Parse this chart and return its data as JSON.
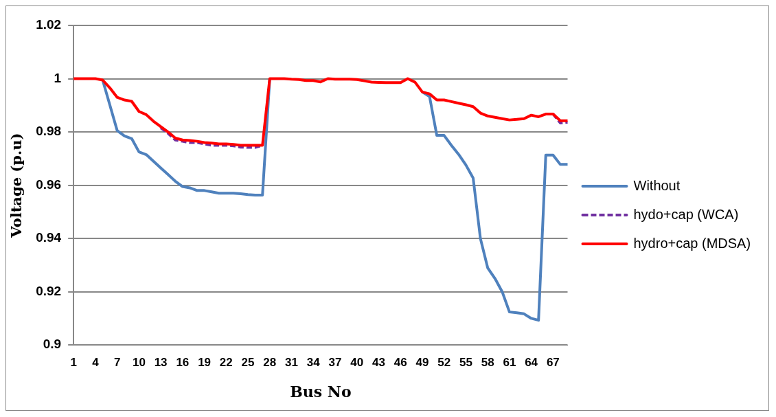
{
  "chart_data": {
    "type": "line",
    "xlabel": "Bus No",
    "ylabel": "Voltage (p.u)",
    "categories": [
      "1",
      null,
      null,
      "4",
      null,
      null,
      "7",
      null,
      null,
      "10",
      null,
      null,
      "13",
      null,
      null,
      "16",
      null,
      null,
      "19",
      null,
      null,
      "22",
      null,
      null,
      "25",
      null,
      null,
      "28",
      null,
      null,
      "31",
      null,
      null,
      "34",
      null,
      null,
      "37",
      null,
      null,
      "40",
      null,
      null,
      "43",
      null,
      null,
      "46",
      null,
      null,
      "49",
      null,
      null,
      "52",
      null,
      null,
      "55",
      null,
      null,
      "58",
      null,
      null,
      "61",
      null,
      null,
      "64",
      null,
      null,
      "67",
      null,
      null
    ],
    "ylim": [
      0.9,
      1.02
    ],
    "yticks": [
      0.9,
      0.92,
      0.94,
      0.96,
      0.98,
      1,
      1.02
    ],
    "grid": "y",
    "legend": "right",
    "marker": "none",
    "series": [
      {
        "name": "Without",
        "color": "#4f81bd",
        "line_style": "solid",
        "values": [
          null,
          null,
          null,
          null,
          0.9995,
          0.99,
          0.9805,
          0.9785,
          0.9775,
          0.9725,
          0.9715,
          0.969,
          0.9665,
          0.964,
          0.9615,
          0.9595,
          0.959,
          0.958,
          0.958,
          0.9575,
          0.957,
          0.957,
          0.957,
          0.9568,
          0.9565,
          0.9563,
          0.9563,
          1,
          null,
          null,
          null,
          null,
          null,
          null,
          null,
          null,
          null,
          null,
          null,
          null,
          null,
          null,
          null,
          null,
          null,
          null,
          null,
          null,
          0.995,
          0.9933,
          0.9787,
          0.9787,
          0.975,
          0.9716,
          0.9676,
          0.9627,
          0.94,
          0.929,
          0.925,
          0.92,
          0.9124,
          0.9121,
          0.9117,
          0.91,
          0.9093,
          0.9713,
          0.9713,
          0.9678,
          0.9678
        ]
      },
      {
        "name": "hydo+cap (WCA)",
        "color": "#7030a0",
        "line_style": "dashed",
        "values": [
          null,
          null,
          null,
          null,
          null,
          null,
          null,
          null,
          null,
          null,
          null,
          null,
          0.9815,
          0.9795,
          0.977,
          0.9765,
          0.976,
          0.976,
          0.9755,
          0.975,
          0.975,
          0.975,
          0.9748,
          0.9743,
          0.9742,
          0.9742,
          0.975,
          null,
          null,
          null,
          null,
          null,
          null,
          null,
          null,
          null,
          null,
          null,
          null,
          null,
          null,
          null,
          null,
          null,
          null,
          null,
          null,
          null,
          null,
          null,
          null,
          null,
          null,
          null,
          null,
          null,
          null,
          null,
          null,
          null,
          null,
          null,
          null,
          null,
          null,
          null,
          0.9867,
          0.9834,
          0.9836
        ]
      },
      {
        "name": "hydro+cap (MDSA)",
        "color": "#ff0000",
        "line_style": "solid",
        "values": [
          1,
          1,
          1,
          1,
          0.9995,
          0.9965,
          0.993,
          0.992,
          0.9915,
          0.9877,
          0.9865,
          0.984,
          0.982,
          0.98,
          0.9777,
          0.977,
          0.9768,
          0.9765,
          0.976,
          0.9758,
          0.9755,
          0.9755,
          0.9753,
          0.975,
          0.975,
          0.975,
          0.975,
          1,
          1,
          1,
          0.9998,
          0.9997,
          0.9993,
          0.9993,
          0.9988,
          1,
          0.9998,
          0.9998,
          0.9998,
          0.9997,
          0.9992,
          0.9987,
          0.9986,
          0.9985,
          0.9985,
          0.9985,
          1,
          0.9987,
          0.995,
          0.9943,
          0.992,
          0.992,
          0.9914,
          0.9908,
          0.9902,
          0.9895,
          0.9871,
          0.986,
          0.9855,
          0.985,
          0.9845,
          0.9847,
          0.985,
          0.9863,
          0.9857,
          0.9867,
          0.9867,
          0.9842,
          0.9842
        ]
      }
    ]
  }
}
